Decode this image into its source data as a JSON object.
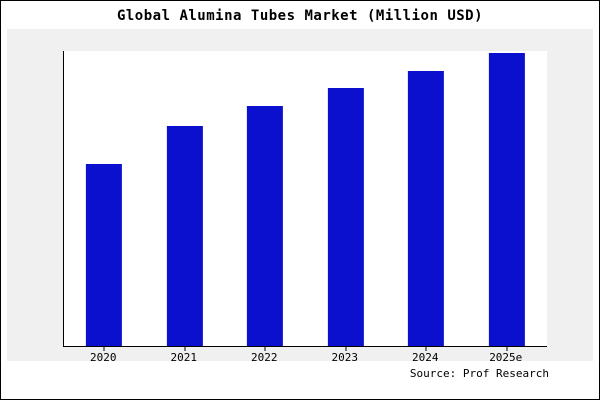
{
  "title": "Global Alumina Tubes Market (Million USD)",
  "source": "Source: Prof Research",
  "colors": {
    "bar": "#0b10cf",
    "chart_background": "#f0f0f0",
    "plot_background": "#ffffff",
    "axis": "#000000"
  },
  "chart_data": {
    "type": "bar",
    "title": "Global Alumina Tubes Market (Million USD)",
    "categories": [
      "2020",
      "2021",
      "2022",
      "2023",
      "2024",
      "2025e"
    ],
    "values": [
      62,
      75,
      82,
      88,
      94,
      100
    ],
    "value_scale": "relative, percent of tallest bar (no y-axis tick labels shown)",
    "xlabel": "",
    "ylabel": "",
    "ylim": [
      0,
      100
    ],
    "grid": false,
    "legend": false,
    "bar_color": "#0b10cf",
    "source_annotation": "Source: Prof Research"
  }
}
